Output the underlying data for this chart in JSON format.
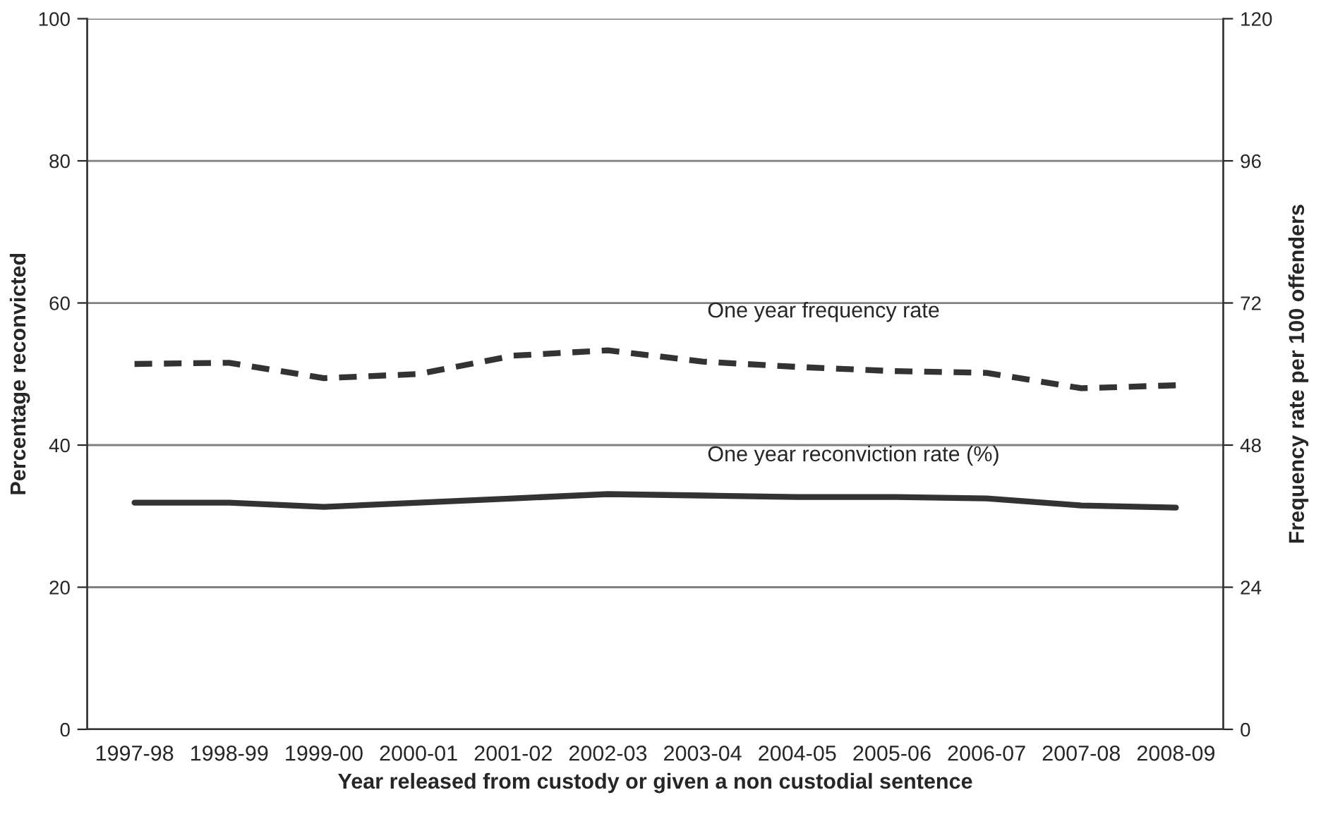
{
  "chart_data": {
    "type": "line",
    "xlabel": "Year released from custody or given a non custodial sentence",
    "ylabel": "Percentage reconvicted",
    "y2label": "Frequency rate per 100 offenders",
    "categories": [
      "1997-98",
      "1998-99",
      "1999-00",
      "2000-01",
      "2001-02",
      "2002-03",
      "2003-04",
      "2004-05",
      "2005-06",
      "2006-07",
      "2007-08",
      "2008-09"
    ],
    "series": [
      {
        "name": "One year reconviction rate (%)",
        "color": "#333333",
        "line_style": "solid",
        "values": [
          31.9,
          31.9,
          31.3,
          31.9,
          32.5,
          33.1,
          32.9,
          32.7,
          32.7,
          32.5,
          31.5,
          31.2
        ]
      },
      {
        "name": "One year frequency rate",
        "color": "#333333",
        "line_style": "dashed",
        "axis": "y2",
        "values": [
          61.7,
          61.9,
          59.3,
          60.0,
          63.1,
          64.0,
          62.1,
          61.2,
          60.5,
          60.2,
          57.6,
          58.1
        ]
      }
    ],
    "ylim": [
      0,
      100
    ],
    "yticks": [
      0,
      20,
      40,
      60,
      80,
      100
    ],
    "y2lim": [
      0,
      120
    ],
    "y2ticks": [
      0,
      24,
      48,
      72,
      96,
      120
    ],
    "grid": "y",
    "legend": false,
    "marker": "none"
  }
}
